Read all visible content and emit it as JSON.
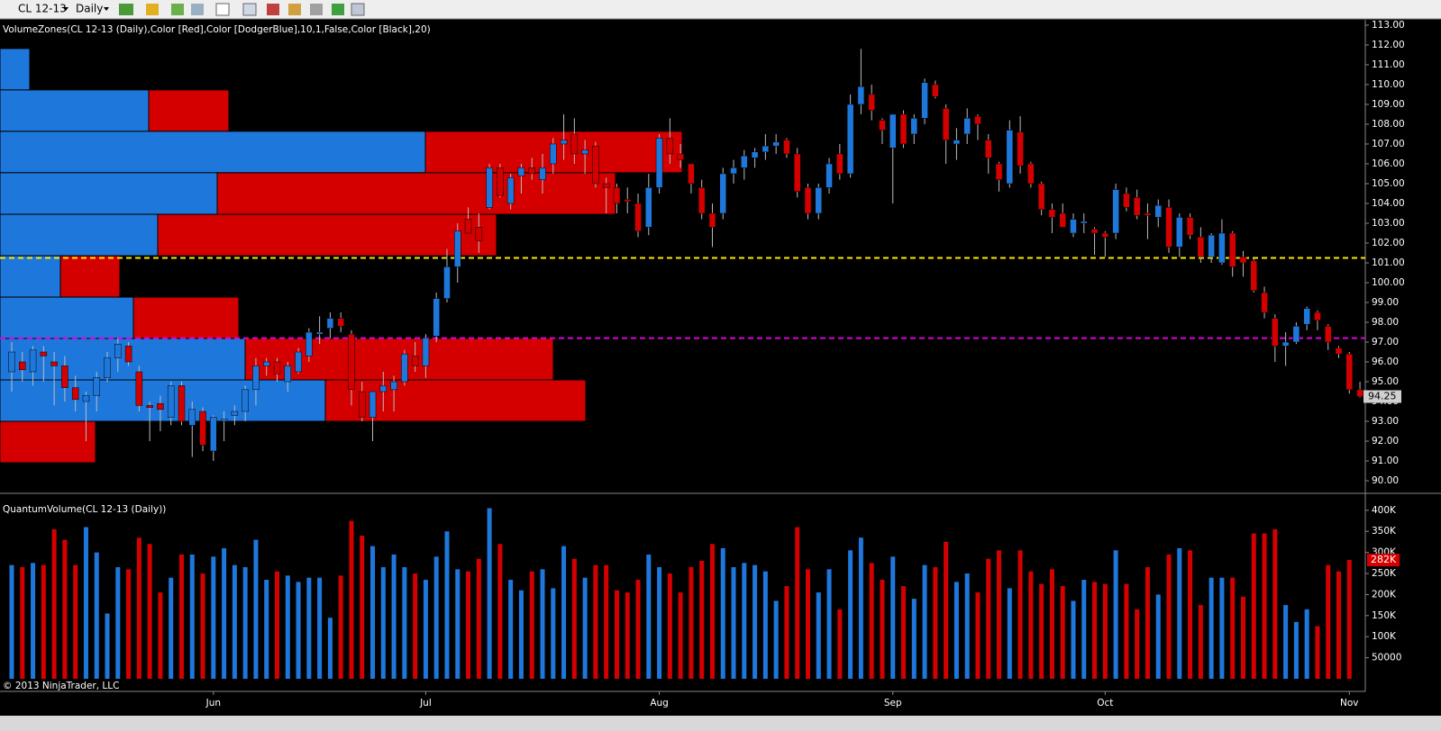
{
  "toolbar": {
    "instrument": "CL 12-13",
    "period": "Daily"
  },
  "copyright": "© 2013 NinjaTrader, LLC",
  "chart_data": [
    {
      "type": "candlestick",
      "title": "VolumeZones(CL 12-13 (Daily),Color [Red],Color [DodgerBlue],10,1,False,Color [Black],20)",
      "categories": [
        null,
        null,
        null,
        null,
        null,
        null,
        null,
        null,
        null,
        null,
        null,
        null,
        null,
        null,
        null,
        null,
        null,
        null,
        null,
        "Jun",
        null,
        null,
        null,
        null,
        null,
        null,
        null,
        null,
        null,
        null,
        null,
        null,
        null,
        null,
        null,
        null,
        null,
        null,
        null,
        "Jul",
        null,
        null,
        null,
        null,
        null,
        null,
        null,
        null,
        null,
        null,
        null,
        null,
        null,
        null,
        null,
        null,
        null,
        null,
        null,
        null,
        null,
        "Aug",
        null,
        null,
        null,
        null,
        null,
        null,
        null,
        null,
        null,
        null,
        null,
        null,
        null,
        null,
        null,
        null,
        null,
        null,
        null,
        null,
        null,
        "Sep",
        null,
        null,
        null,
        null,
        null,
        null,
        null,
        null,
        null,
        null,
        null,
        null,
        null,
        null,
        null,
        null,
        null,
        null,
        null,
        "Oct",
        null,
        null,
        null,
        null,
        null,
        null,
        null,
        null,
        null,
        null,
        null,
        null,
        null,
        null,
        null,
        null,
        null,
        null,
        null,
        null,
        null,
        null,
        "Nov",
        null
      ],
      "open": [
        95.5,
        96,
        95.5,
        96.5,
        96,
        95.8,
        94.7,
        94,
        94.3,
        95.2,
        96.2,
        96.8,
        95.5,
        93.8,
        93.9,
        93.2,
        94.8,
        92.8,
        93.5,
        91.5,
        93,
        93.3,
        93.5,
        94.6,
        95.8,
        96,
        95,
        95.5,
        96.3,
        97.4,
        97.7,
        98.2,
        97.4,
        94.5,
        93.2,
        94.5,
        94.6,
        95,
        96.3,
        95.8,
        97.3,
        99.2,
        100.8,
        103.2,
        102.8,
        103.8,
        105.8,
        104,
        105.4,
        105.8,
        105.2,
        106,
        107,
        107.5,
        106.5,
        106.9,
        105,
        104.8,
        104.2,
        104,
        102.8,
        104.8,
        107.3,
        106.5,
        106,
        104.8,
        103.5,
        103.5,
        105.5,
        105.8,
        106.3,
        106.6,
        106.9,
        107.2,
        106.5,
        104.8,
        103.5,
        104.8,
        106.5,
        105.5,
        109,
        109.5,
        108.2,
        106.8,
        108.5,
        107.5,
        108.3,
        110,
        108.8,
        107,
        107.5,
        108.4,
        107.2,
        106,
        105,
        107.6,
        106,
        105,
        103.7,
        103.5,
        102.5,
        103,
        102.7,
        102.5,
        102.5,
        104.5,
        104.3,
        103.5,
        103.3,
        103.8,
        101.8,
        103.3,
        102.3,
        101.3,
        101,
        102.5,
        101.3,
        101.1,
        99.5,
        98.2,
        96.8,
        97,
        97.9,
        98.5,
        97.8,
        96.7,
        96.4,
        94.6
      ],
      "high": [
        97,
        96.5,
        96.8,
        96.8,
        96.5,
        96.3,
        95.3,
        94.5,
        95.5,
        96.5,
        97.2,
        97,
        95.8,
        94,
        94.3,
        95,
        95,
        94,
        93.7,
        93.3,
        93.5,
        93.8,
        94.8,
        96.2,
        96.2,
        96.2,
        96,
        96.7,
        97.7,
        98.3,
        98.5,
        98.5,
        97.6,
        95,
        94.5,
        95.5,
        95.3,
        96.6,
        97,
        97.4,
        99.5,
        101.7,
        103,
        103.8,
        103.5,
        106,
        106,
        105.5,
        106,
        106.3,
        106.5,
        107.3,
        108.5,
        108.3,
        107.2,
        107.1,
        105.3,
        105,
        104.8,
        104.5,
        105.5,
        107.5,
        108.3,
        107,
        106,
        105.2,
        104,
        105.8,
        106.2,
        106.7,
        106.8,
        107.5,
        107.5,
        107.3,
        106.8,
        105,
        105,
        106.3,
        107,
        109.5,
        111.8,
        110,
        108.3,
        108.5,
        108.7,
        108.5,
        110.3,
        110.2,
        109,
        107.8,
        108.8,
        108.5,
        107.5,
        106.1,
        108.2,
        108.4,
        106.1,
        105.1,
        104,
        104,
        103.5,
        103.5,
        102.8,
        102.6,
        105,
        104.8,
        104.7,
        104,
        104.2,
        104.2,
        103.5,
        103.5,
        102.8,
        102.5,
        103.2,
        102.6,
        101.6,
        101.3,
        99.8,
        98.4,
        97.5,
        98,
        98.8,
        98.6,
        97.9,
        96.8,
        96.5,
        95
      ],
      "low": [
        94.5,
        95,
        94.8,
        95,
        93.8,
        94,
        93.5,
        92,
        93.5,
        95,
        95.5,
        95.8,
        93.5,
        92,
        92.5,
        92.8,
        92.8,
        91.2,
        91.5,
        91,
        92,
        92.8,
        93,
        93.8,
        95.3,
        95,
        94.5,
        95.4,
        96,
        96.9,
        97.2,
        97.5,
        93.8,
        93,
        92,
        93.5,
        93.5,
        94.8,
        95.5,
        95.2,
        97,
        99,
        100,
        102.5,
        101.5,
        103.7,
        104.3,
        103.7,
        104.5,
        105.2,
        104.5,
        105.5,
        106.2,
        106,
        105.5,
        104.8,
        103.5,
        103.5,
        103.5,
        102.3,
        102.4,
        104.5,
        106,
        105.8,
        104.5,
        103.2,
        101.8,
        103.2,
        105,
        105.2,
        105.8,
        106.2,
        106.5,
        106.3,
        104.3,
        103.2,
        103.2,
        104.5,
        105.2,
        105.3,
        108.5,
        108.2,
        107,
        104,
        106.8,
        107,
        108,
        109.3,
        106,
        106.2,
        107,
        107.2,
        105.5,
        104.6,
        104.8,
        105.5,
        104.8,
        103.4,
        102.5,
        102.8,
        102.3,
        102.5,
        101.4,
        101.3,
        102.2,
        103.6,
        103.2,
        102.2,
        102.8,
        101.5,
        101.3,
        102.2,
        101,
        101,
        100.9,
        100.3,
        100.3,
        99.5,
        98.2,
        96,
        95.8,
        96.9,
        97.6,
        97.6,
        96.6,
        96.2,
        94.4,
        94.2
      ],
      "close": [
        96.5,
        95.6,
        96.6,
        96.3,
        95.8,
        94.7,
        94.1,
        94.3,
        95.2,
        96.2,
        96.9,
        96,
        93.8,
        93.7,
        93.6,
        94.8,
        93,
        93.6,
        91.8,
        93.2,
        93.1,
        93.5,
        94.6,
        95.8,
        96,
        95.4,
        95.8,
        96.5,
        97.5,
        97.5,
        98.2,
        97.8,
        94.6,
        93.2,
        94.5,
        94.8,
        95,
        96.4,
        95.8,
        97.2,
        99.2,
        100.8,
        102.6,
        102.5,
        102.1,
        105.8,
        104.4,
        105.3,
        105.8,
        105.5,
        105.8,
        107,
        107.2,
        106.5,
        106.7,
        105,
        104.8,
        104,
        104.1,
        102.6,
        104.8,
        107.3,
        106.5,
        106.2,
        105,
        103.5,
        102.8,
        105.5,
        105.8,
        106.4,
        106.6,
        106.9,
        107.1,
        106.5,
        104.6,
        103.5,
        104.8,
        106,
        105.5,
        109,
        109.9,
        108.7,
        107.7,
        108.5,
        107,
        108.3,
        110.1,
        109.4,
        107.2,
        107.2,
        108.3,
        108,
        106.3,
        105.2,
        107.7,
        105.9,
        105,
        103.7,
        103.3,
        102.8,
        103.2,
        103.1,
        102.5,
        102.3,
        104.7,
        103.8,
        103.4,
        103.4,
        103.9,
        101.8,
        103.3,
        102.4,
        101.3,
        102.4,
        102.5,
        100.8,
        101,
        99.6,
        98.5,
        96.8,
        97,
        97.8,
        98.7,
        98.1,
        97,
        96.4,
        94.6,
        94.25
      ],
      "up_color": "#1e78dc",
      "down_color": "#d40000",
      "zones": {
        "edges": [
          111.82,
          109.73,
          107.64,
          105.55,
          103.45,
          101.36,
          99.27,
          97.18,
          95.09,
          93,
          90.91
        ],
        "up": [
          33,
          165,
          472,
          241,
          175,
          67,
          148,
          272,
          361,
          0
        ],
        "down": [
          0,
          89,
          285,
          442,
          376,
          66,
          117,
          342,
          289,
          106
        ]
      },
      "levels": [
        {
          "value": 101.25,
          "color": "#ffe600"
        },
        {
          "value": 97.2,
          "color": "#e000e0"
        }
      ],
      "last_price": 94.25,
      "ylim": [
        89.41,
        113.27
      ],
      "yticks": [
        {
          "value": 113,
          "label": "113.00"
        },
        {
          "value": 112,
          "label": "112.00"
        },
        {
          "value": 111,
          "label": "111.00"
        },
        {
          "value": 110,
          "label": "110.00"
        },
        {
          "value": 109,
          "label": "109.00"
        },
        {
          "value": 108,
          "label": "108.00"
        },
        {
          "value": 107,
          "label": "107.00"
        },
        {
          "value": 106,
          "label": "106.00"
        },
        {
          "value": 105,
          "label": "105.00"
        },
        {
          "value": 104,
          "label": "104.00"
        },
        {
          "value": 103,
          "label": "103.00"
        },
        {
          "value": 102,
          "label": "102.00"
        },
        {
          "value": 101,
          "label": "101.00"
        },
        {
          "value": 100,
          "label": "100.00"
        },
        {
          "value": 99,
          "label": "99.00"
        },
        {
          "value": 98,
          "label": "98.00"
        },
        {
          "value": 97,
          "label": "97.00"
        },
        {
          "value": 96,
          "label": "96.00"
        },
        {
          "value": 95,
          "label": "95.00"
        },
        {
          "value": 94,
          "label": "94.00"
        },
        {
          "value": 93,
          "label": "93.00"
        },
        {
          "value": 92,
          "label": "92.00"
        },
        {
          "value": 91,
          "label": "91.00"
        },
        {
          "value": 90,
          "label": "90.00"
        }
      ]
    },
    {
      "type": "bar",
      "title": "QuantumVolume(CL 12-13 (Daily))",
      "values": [
        270000,
        265000,
        275000,
        270000,
        355000,
        330000,
        270000,
        360000,
        300000,
        155000,
        265000,
        260000,
        335000,
        320000,
        205000,
        240000,
        295000,
        295000,
        250000,
        290000,
        310000,
        270000,
        265000,
        330000,
        235000,
        255000,
        245000,
        230000,
        240000,
        240000,
        145000,
        245000,
        375000,
        340000,
        315000,
        265000,
        295000,
        265000,
        250000,
        235000,
        290000,
        350000,
        260000,
        255000,
        285000,
        405000,
        320000,
        235000,
        210000,
        255000,
        260000,
        215000,
        315000,
        285000,
        240000,
        270000,
        270000,
        210000,
        205000,
        235000,
        295000,
        265000,
        250000,
        205000,
        265000,
        280000,
        320000,
        310000,
        265000,
        275000,
        270000,
        255000,
        185000,
        220000,
        360000,
        260000,
        205000,
        260000,
        165000,
        305000,
        335000,
        275000,
        235000,
        290000,
        220000,
        190000,
        270000,
        265000,
        325000,
        230000,
        250000,
        205000,
        285000,
        305000,
        215000,
        305000,
        255000,
        225000,
        260000,
        220000,
        185000,
        235000,
        230000,
        225000,
        305000,
        225000,
        165000,
        265000,
        200000,
        295000,
        310000,
        305000,
        175000,
        240000,
        240000,
        240000,
        195000,
        345000,
        345000,
        355000,
        175000,
        135000,
        165000,
        125000,
        270000,
        255000,
        282000,
        null
      ],
      "last_value": {
        "value": 282000,
        "label": "282K"
      },
      "ylim": [
        -23500,
        436000
      ],
      "yticks": [
        {
          "value": 400000,
          "label": "400K"
        },
        {
          "value": 350000,
          "label": "350K"
        },
        {
          "value": 300000,
          "label": "300K"
        },
        {
          "value": 250000,
          "label": "250K"
        },
        {
          "value": 200000,
          "label": "200K"
        },
        {
          "value": 150000,
          "label": "150K"
        },
        {
          "value": 100000,
          "label": "100K"
        },
        50000
      ]
    }
  ]
}
